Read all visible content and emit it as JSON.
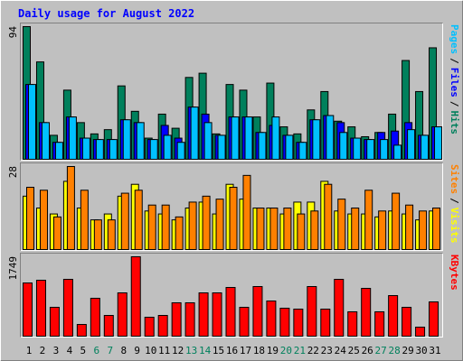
{
  "chart_data": {
    "type": "bar",
    "title": "Daily usage for August 2022",
    "categories": [
      "1",
      "2",
      "3",
      "4",
      "5",
      "6",
      "7",
      "8",
      "9",
      "10",
      "11",
      "12",
      "13",
      "14",
      "15",
      "16",
      "17",
      "18",
      "19",
      "20",
      "21",
      "22",
      "23",
      "24",
      "25",
      "26",
      "27",
      "28",
      "29",
      "30",
      "31"
    ],
    "weekends": [
      "6",
      "7",
      "13",
      "14",
      "20",
      "21",
      "27",
      "28"
    ],
    "weekend_color": "#00805c",
    "legend_separator": "/",
    "panels": [
      {
        "ylim": [
          0,
          94
        ],
        "yticks": [
          94
        ],
        "series": [
          {
            "name": "Hits",
            "color": "#00805c",
            "values": [
              94,
              69,
              17,
              49,
              26,
              18,
              21,
              52,
              34,
              15,
              32,
              22,
              58,
              61,
              18,
              53,
              49,
              30,
              54,
              23,
              18,
              35,
              48,
              27,
              23,
              16,
              19,
              32,
              70,
              48,
              79
            ]
          },
          {
            "name": "Files",
            "color": "#0000ff",
            "values": [
              53,
              26,
              12,
              30,
              15,
              14,
              14,
              28,
              26,
              14,
              24,
              15,
              37,
              32,
              17,
              30,
              30,
              19,
              24,
              17,
              12,
              28,
              31,
              26,
              15,
              14,
              19,
              20,
              26,
              17,
              23
            ]
          },
          {
            "name": "Pages",
            "color": "#00c0ff",
            "values": [
              53,
              26,
              12,
              30,
              15,
              14,
              14,
              28,
              26,
              14,
              17,
              12,
              37,
              26,
              17,
              30,
              30,
              19,
              30,
              17,
              12,
              28,
              31,
              19,
              15,
              14,
              14,
              10,
              21,
              17,
              23
            ]
          }
        ]
      },
      {
        "ylim": [
          0,
          28
        ],
        "yticks": [
          28
        ],
        "series": [
          {
            "name": "Visits",
            "color": "#ffff00",
            "values": [
              18,
              14,
              12,
              23,
              14,
              10,
              12,
              18,
              22,
              13,
              12,
              10,
              14,
              16,
              12,
              22,
              17,
              14,
              14,
              12,
              16,
              16,
              23,
              13,
              12,
              12,
              11,
              13,
              12,
              10,
              13
            ]
          },
          {
            "name": "Sites",
            "color": "#ff8000",
            "values": [
              21,
              20,
              11,
              28,
              20,
              10,
              10,
              19,
              20,
              15,
              15,
              11,
              16,
              18,
              17,
              21,
              25,
              14,
              14,
              14,
              12,
              13,
              22,
              17,
              14,
              20,
              13,
              19,
              15,
              13,
              14
            ]
          }
        ]
      },
      {
        "ylim": [
          0,
          1749
        ],
        "yticks": [
          1749
        ],
        "series": [
          {
            "name": "KBytes",
            "color": "#ff0000",
            "values": [
              1172,
              1232,
              636,
              1252,
              258,
              835,
              457,
              954,
              1749,
              417,
              457,
              735,
              735,
              954,
              954,
              1073,
              636,
              1093,
              775,
              616,
              596,
              1093,
              596,
              1252,
              537,
              1053,
              537,
              894,
              636,
              199,
              755
            ]
          }
        ]
      }
    ]
  }
}
